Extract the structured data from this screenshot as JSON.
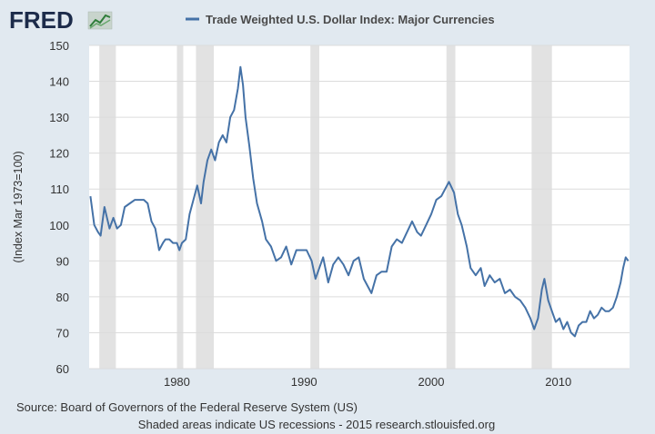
{
  "logo": {
    "text": "FRED",
    "icon": "chart-trend-icon"
  },
  "colors": {
    "background": "#e1e9f0",
    "plot_bg": "#ffffff",
    "series": "#4572a7",
    "recession": "#e2e2e2",
    "grid": "#dcdcdc"
  },
  "chart_data": {
    "type": "line",
    "title": "",
    "xlabel": "",
    "ylabel": "(Index Mar 1973=100)",
    "xlim": [
      1973.1,
      2015.6
    ],
    "ylim": [
      60,
      150
    ],
    "yticks": [
      60,
      70,
      80,
      90,
      100,
      110,
      120,
      130,
      140,
      150
    ],
    "xticks": [
      1980,
      1990,
      2000,
      2010
    ],
    "grid": true,
    "legend": {
      "position": "top",
      "entries": [
        "Trade Weighted U.S. Dollar Index: Major Currencies"
      ]
    },
    "recessions": [
      [
        1973.9,
        1975.2
      ],
      [
        1980.0,
        1980.5
      ],
      [
        1981.5,
        1982.9
      ],
      [
        1990.5,
        1991.2
      ],
      [
        2001.2,
        2001.9
      ],
      [
        2007.9,
        2009.5
      ]
    ],
    "series": [
      {
        "name": "Trade Weighted U.S. Dollar Index: Major Currencies",
        "x": [
          1973.2,
          1973.5,
          1973.8,
          1974.0,
          1974.3,
          1974.7,
          1975.0,
          1975.3,
          1975.6,
          1975.9,
          1976.3,
          1976.7,
          1977.0,
          1977.4,
          1977.7,
          1978.0,
          1978.3,
          1978.6,
          1978.9,
          1979.1,
          1979.4,
          1979.7,
          1980.0,
          1980.2,
          1980.4,
          1980.7,
          1981.0,
          1981.3,
          1981.6,
          1981.9,
          1982.1,
          1982.4,
          1982.7,
          1983.0,
          1983.3,
          1983.6,
          1983.9,
          1984.2,
          1984.5,
          1984.8,
          1985.0,
          1985.2,
          1985.4,
          1985.7,
          1986.0,
          1986.3,
          1986.7,
          1987.0,
          1987.4,
          1987.8,
          1988.2,
          1988.6,
          1989.0,
          1989.4,
          1989.8,
          1990.2,
          1990.6,
          1990.9,
          1991.2,
          1991.5,
          1991.9,
          1992.3,
          1992.7,
          1993.1,
          1993.5,
          1993.9,
          1994.3,
          1994.7,
          1995.0,
          1995.3,
          1995.7,
          1996.1,
          1996.5,
          1996.9,
          1997.3,
          1997.7,
          1998.1,
          1998.5,
          1998.9,
          1999.2,
          1999.6,
          2000.0,
          2000.4,
          2000.8,
          2001.1,
          2001.4,
          2001.8,
          2002.1,
          2002.4,
          2002.8,
          2003.1,
          2003.5,
          2003.9,
          2004.2,
          2004.6,
          2005.0,
          2005.4,
          2005.8,
          2006.2,
          2006.6,
          2007.0,
          2007.4,
          2007.8,
          2008.1,
          2008.4,
          2008.7,
          2008.9,
          2009.2,
          2009.5,
          2009.8,
          2010.1,
          2010.4,
          2010.7,
          2011.0,
          2011.3,
          2011.6,
          2011.9,
          2012.2,
          2012.5,
          2012.8,
          2013.1,
          2013.4,
          2013.7,
          2014.0,
          2014.3,
          2014.6,
          2014.9,
          2015.1,
          2015.3,
          2015.5
        ],
        "values": [
          108,
          100,
          98,
          97,
          105,
          99,
          102,
          99,
          100,
          105,
          106,
          107,
          107,
          107,
          106,
          101,
          99,
          93,
          95,
          96,
          96,
          95,
          95,
          93,
          95,
          96,
          103,
          107,
          111,
          106,
          112,
          118,
          121,
          118,
          123,
          125,
          123,
          130,
          132,
          138,
          144,
          139,
          130,
          122,
          113,
          106,
          101,
          96,
          94,
          90,
          91,
          94,
          89,
          93,
          93,
          93,
          90,
          85,
          88,
          91,
          84,
          89,
          91,
          89,
          86,
          90,
          91,
          85,
          83,
          81,
          86,
          87,
          87,
          94,
          96,
          95,
          98,
          101,
          98,
          97,
          100,
          103,
          107,
          108,
          110,
          112,
          109,
          103,
          100,
          94,
          88,
          86,
          88,
          83,
          86,
          84,
          85,
          81,
          82,
          80,
          79,
          77,
          74,
          71,
          74,
          82,
          85,
          79,
          76,
          73,
          74,
          71,
          73,
          70,
          69,
          72,
          73,
          73,
          76,
          74,
          75,
          77,
          76,
          76,
          77,
          80,
          84,
          88,
          91,
          90
        ]
      }
    ]
  },
  "footer": {
    "source": "Source: Board of Governors of the Federal Reserve System (US)",
    "note": "Shaded areas indicate US recessions - 2015 research.stlouisfed.org"
  }
}
